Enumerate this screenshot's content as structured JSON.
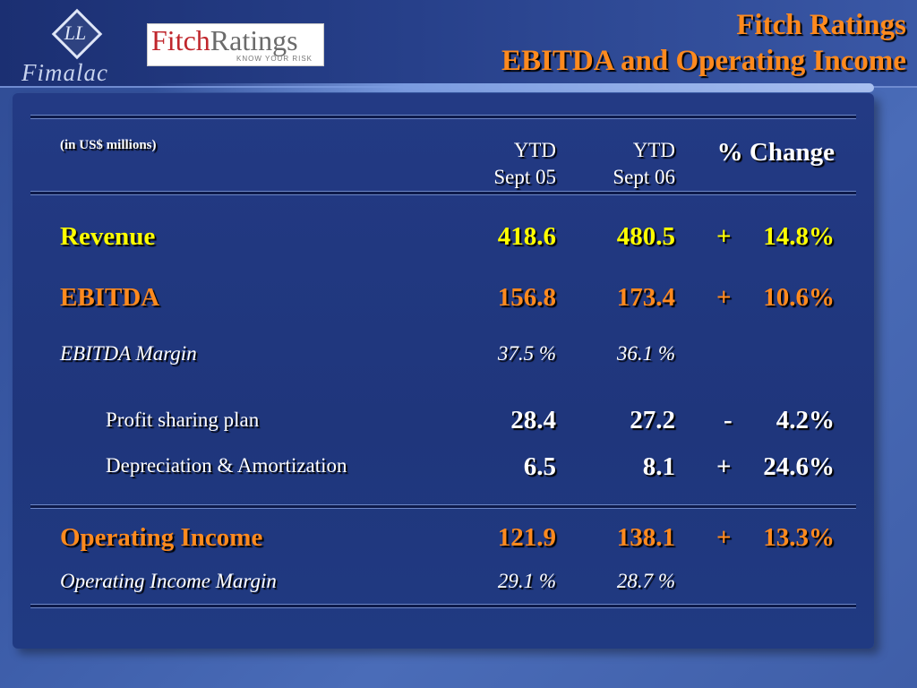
{
  "header": {
    "fimalac_monogram": "LL",
    "fimalac_name": "Fimalac",
    "fitch_logo_word1": "Fitch",
    "fitch_logo_word2": "Ratings",
    "fitch_logo_tagline": "KNOW YOUR RISK",
    "title_line1": "Fitch Ratings",
    "title_line2": "EBITDA and Operating Income"
  },
  "table": {
    "unit_note": "(in US$ millions)",
    "col1_line1": "YTD",
    "col1_line2": "Sept 05",
    "col2_line1": "YTD",
    "col2_line2": "Sept 06",
    "col3": "% Change",
    "rows": [
      {
        "label": "Revenue",
        "v1": "418.6",
        "v2": "480.5",
        "sign": "+",
        "change": "14.8%"
      },
      {
        "label": "EBITDA",
        "v1": "156.8",
        "v2": "173.4",
        "sign": "+",
        "change": "10.6%"
      },
      {
        "label": "EBITDA Margin",
        "v1": "37.5 %",
        "v2": "36.1 %"
      },
      {
        "label": "Profit sharing plan",
        "v1": "28.4",
        "v2": "27.2",
        "sign": "-",
        "change": "4.2%"
      },
      {
        "label": "Depreciation & Amortization",
        "v1": "6.5",
        "v2": "8.1",
        "sign": "+",
        "change": "24.6%"
      },
      {
        "label": "Operating Income",
        "v1": "121.9",
        "v2": "138.1",
        "sign": "+",
        "change": "13.3%"
      },
      {
        "label": "Operating Income Margin",
        "v1": "29.1 %",
        "v2": "28.7 %"
      }
    ]
  },
  "colors": {
    "title": "#ff8a1e",
    "revenue": "#ffff00",
    "ebitda": "#ff8a1e",
    "operating_income": "#ff8a1e"
  }
}
